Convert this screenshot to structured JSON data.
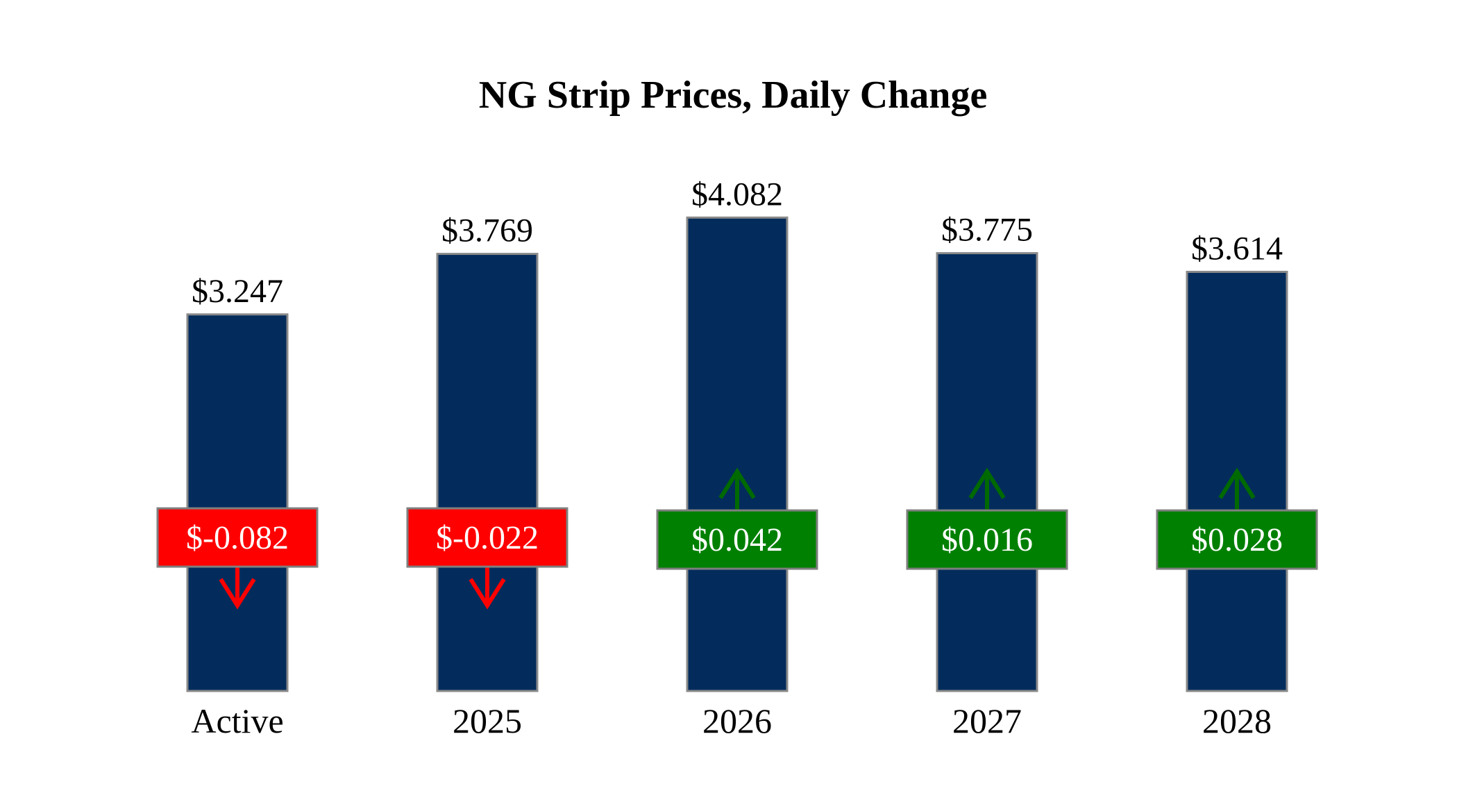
{
  "chart_data": {
    "type": "bar",
    "title": "NG Strip Prices, Daily Change",
    "xlabel": "",
    "ylabel": "",
    "categories": [
      "Active",
      "2025",
      "2026",
      "2027",
      "2028"
    ],
    "values": [
      3.247,
      3.769,
      4.082,
      3.775,
      3.614
    ],
    "value_labels": [
      "$3.247",
      "$3.769",
      "$4.082",
      "$3.775",
      "$3.614"
    ],
    "changes": [
      -0.082,
      -0.022,
      0.042,
      0.016,
      0.028
    ],
    "change_labels": [
      "$-0.082",
      "$-0.022",
      "$0.042",
      "$0.016",
      "$0.028"
    ],
    "grid": false,
    "legend": "none"
  },
  "colors": {
    "bar": "#032c5c",
    "bar_border": "#8a8a8a",
    "down": "#ff0000",
    "up": "#008000",
    "up_arrow": "#006a00",
    "box_border": "#7f7f7f"
  },
  "icons": {
    "down": "arrow-down-icon",
    "up": "arrow-up-icon"
  }
}
